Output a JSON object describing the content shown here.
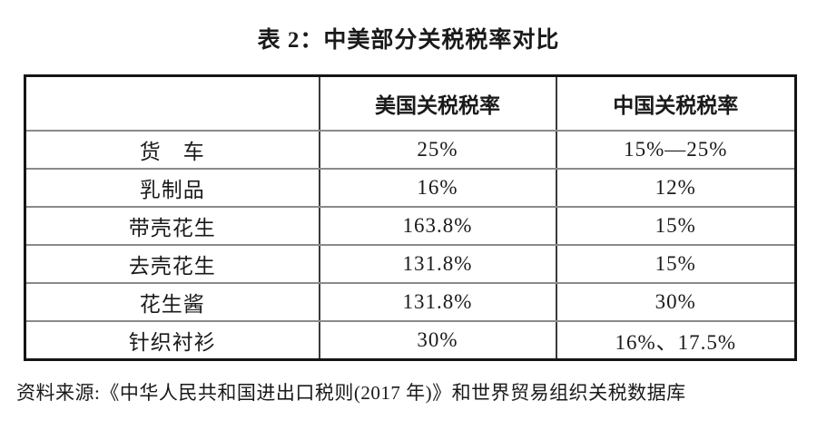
{
  "title": "表 2：中美部分关税税率对比",
  "table": {
    "columns": {
      "item": "",
      "us": "美国关税税率",
      "cn": "中国关税税率"
    },
    "rows": [
      {
        "item": "货　车",
        "us": "25%",
        "cn": "15%—25%"
      },
      {
        "item": "乳制品",
        "us": "16%",
        "cn": "12%"
      },
      {
        "item": "带壳花生",
        "us": "163.8%",
        "cn": "15%"
      },
      {
        "item": "去壳花生",
        "us": "131.8%",
        "cn": "15%"
      },
      {
        "item": "花生酱",
        "us": "131.8%",
        "cn": "30%"
      },
      {
        "item": "针织衬衫",
        "us": "30%",
        "cn": "16%、17.5%"
      }
    ]
  },
  "source_note": "资料来源:《中华人民共和国进出口税则(2017 年)》和世界贸易组织关税数据库",
  "colors": {
    "text": "#1a1a1a",
    "outer_border": "#151515",
    "horizontal_grid": "#8a8a8a",
    "vertical_grid": "#3a3a3a",
    "background": "#ffffff"
  }
}
